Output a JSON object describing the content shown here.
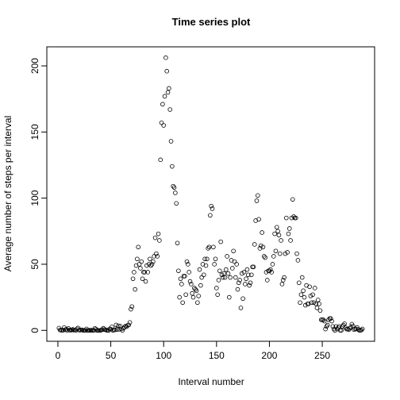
{
  "chart_data": {
    "type": "scatter",
    "title": "Time series plot",
    "x_label": "Interval number",
    "y_label": "Average number of steps per interval",
    "x": [
      1,
      2,
      3,
      4,
      5,
      6,
      7,
      8,
      9,
      10,
      11,
      12,
      13,
      14,
      15,
      16,
      17,
      18,
      19,
      20,
      21,
      22,
      23,
      24,
      25,
      26,
      27,
      28,
      29,
      30,
      31,
      32,
      33,
      34,
      35,
      36,
      37,
      38,
      39,
      40,
      41,
      42,
      43,
      44,
      45,
      46,
      47,
      48,
      49,
      50,
      51,
      52,
      53,
      54,
      55,
      56,
      57,
      58,
      59,
      60,
      61,
      62,
      63,
      64,
      65,
      66,
      67,
      68,
      69,
      70,
      71,
      72,
      73,
      74,
      75,
      76,
      77,
      78,
      79,
      80,
      81,
      82,
      83,
      84,
      85,
      86,
      87,
      88,
      89,
      90,
      91,
      92,
      93,
      94,
      95,
      96,
      97,
      98,
      99,
      100,
      101,
      102,
      103,
      104,
      105,
      106,
      107,
      108,
      109,
      110,
      111,
      112,
      113,
      114,
      115,
      116,
      117,
      118,
      119,
      120,
      121,
      122,
      123,
      124,
      125,
      126,
      127,
      128,
      129,
      130,
      131,
      132,
      133,
      134,
      135,
      136,
      137,
      138,
      139,
      140,
      141,
      142,
      143,
      144,
      145,
      146,
      147,
      148,
      149,
      150,
      151,
      152,
      153,
      154,
      155,
      156,
      157,
      158,
      159,
      160,
      161,
      162,
      163,
      164,
      165,
      166,
      167,
      168,
      169,
      170,
      171,
      172,
      173,
      174,
      175,
      176,
      177,
      178,
      179,
      180,
      181,
      182,
      183,
      184,
      185,
      186,
      187,
      188,
      189,
      190,
      191,
      192,
      193,
      194,
      195,
      196,
      197,
      198,
      199,
      200,
      201,
      202,
      203,
      204,
      205,
      206,
      207,
      208,
      209,
      210,
      211,
      212,
      213,
      214,
      215,
      216,
      217,
      218,
      219,
      220,
      221,
      222,
      223,
      224,
      225,
      226,
      227,
      228,
      229,
      230,
      231,
      232,
      233,
      234,
      235,
      236,
      237,
      238,
      239,
      240,
      241,
      242,
      243,
      244,
      245,
      246,
      247,
      248,
      249,
      250,
      251,
      252,
      253,
      254,
      255,
      256,
      257,
      258,
      259,
      260,
      261,
      262,
      263,
      264,
      265,
      266,
      267,
      268,
      269,
      270,
      271,
      272,
      273,
      274,
      275,
      276,
      277,
      278,
      279,
      280,
      281,
      282,
      283,
      284,
      285,
      286,
      287,
      288
    ],
    "values": [
      1.7,
      0.3,
      0.1,
      0.2,
      0.1,
      2.1,
      0.5,
      0.9,
      0,
      1.5,
      0.3,
      0.1,
      0.3,
      0.7,
      0.2,
      0.3,
      0,
      1.1,
      1.8,
      0.2,
      0.2,
      0.4,
      0.3,
      0,
      0,
      0,
      1.1,
      0,
      0,
      0.1,
      0,
      0.2,
      0,
      0,
      1.5,
      0.9,
      0,
      0,
      0,
      0,
      0.2,
      0.6,
      1.6,
      0.6,
      0.5,
      0.1,
      0,
      0,
      1.2,
      0.9,
      2.6,
      0,
      0.3,
      0.4,
      4.1,
      0.7,
      3.5,
      0.8,
      3.1,
      1.1,
      0,
      1.6,
      2.4,
      3.3,
      2.8,
      3.8,
      4.1,
      6,
      16,
      18,
      39,
      44,
      31,
      49,
      54,
      63,
      50,
      47,
      52,
      39,
      44,
      44,
      37,
      49,
      44,
      50,
      54,
      49,
      50,
      52,
      56,
      70,
      58,
      56,
      73,
      68,
      129,
      157,
      171,
      155,
      177,
      206.2,
      196,
      180,
      183,
      167,
      143,
      124,
      109,
      108,
      104,
      96,
      66,
      45,
      25,
      39,
      35,
      21,
      41,
      41,
      27,
      52,
      50,
      44,
      37,
      35,
      28,
      25,
      32,
      31,
      30,
      21,
      26,
      46,
      34,
      40,
      50,
      42,
      54,
      49,
      54,
      62,
      63,
      87,
      94,
      92,
      63,
      50,
      54,
      32,
      27,
      38,
      45,
      67,
      42,
      40,
      43,
      40,
      46,
      56,
      43,
      25,
      40,
      53,
      47,
      60,
      52,
      40,
      50,
      31,
      36,
      38,
      17,
      43,
      24,
      44,
      35,
      39,
      46,
      42,
      34,
      36,
      42,
      48,
      48,
      65,
      83,
      98,
      102,
      84,
      62,
      64,
      74,
      63,
      56,
      55,
      44,
      38,
      45,
      45,
      46,
      44,
      50,
      56,
      73,
      60,
      78,
      75,
      72,
      58,
      68,
      35,
      38,
      40,
      58,
      85,
      59,
      73,
      77,
      68,
      85,
      99,
      86,
      85,
      85,
      58,
      53,
      36,
      21,
      27,
      40,
      30,
      25,
      19,
      34,
      20,
      20,
      33,
      26,
      21,
      27,
      21,
      32,
      20,
      17,
      23,
      20,
      15,
      8,
      8,
      8,
      7,
      1,
      3,
      4,
      8,
      9,
      9,
      7,
      3,
      1,
      0,
      3,
      1,
      2,
      3,
      0,
      0,
      3,
      4,
      5,
      2,
      1,
      1,
      0.5,
      1.5,
      2.6,
      4.7,
      3.3,
      0.6,
      1.2,
      1,
      2.2,
      0.8,
      0,
      0,
      0.3,
      1.1
    ],
    "xlim": [
      -10.48,
      299.48
    ],
    "ylim": [
      -8.25,
      214.42
    ],
    "xticks": [
      0,
      50,
      100,
      150,
      200,
      250
    ],
    "yticks": [
      0,
      50,
      100,
      150,
      200
    ]
  }
}
